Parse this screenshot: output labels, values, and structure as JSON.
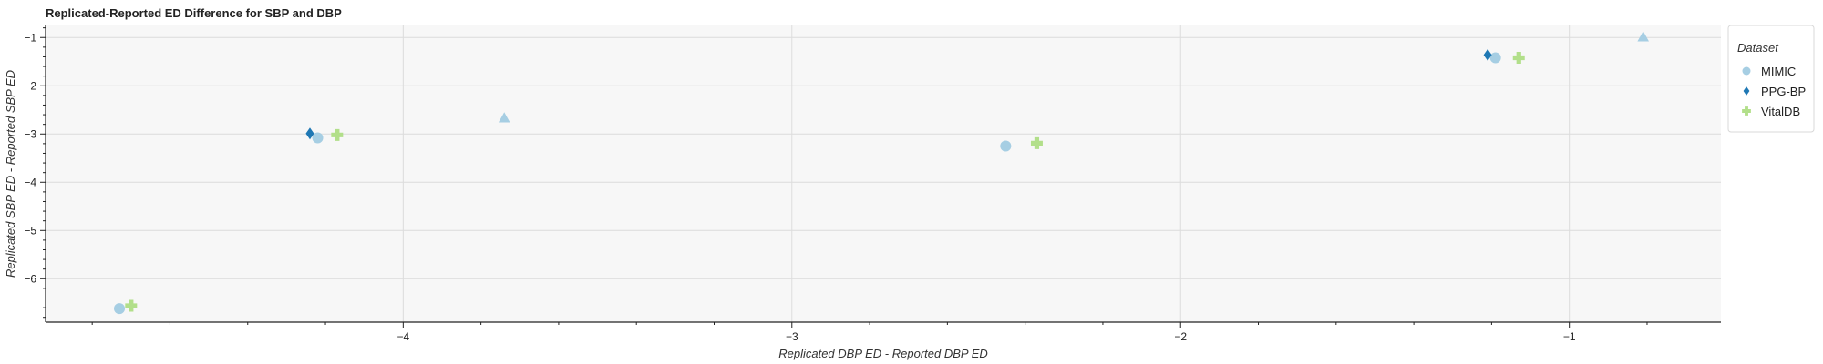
{
  "chart_data": {
    "type": "scatter",
    "title": "Replicated-Reported ED Difference for SBP and DBP",
    "xlabel": "Replicated DBP ED - Reported DBP ED",
    "ylabel": "Replicated SBP ED - Reported SBP ED",
    "xlim": [
      -4.92,
      -0.61
    ],
    "ylim": [
      -6.9,
      -0.75
    ],
    "xticks": [
      -4,
      -3,
      -2,
      -1
    ],
    "xtick_labels": [
      "−4",
      "−3",
      "−2",
      "−1"
    ],
    "yticks": [
      -1,
      -2,
      -3,
      -4,
      -5,
      -6
    ],
    "ytick_labels": [
      "−1",
      "−2",
      "−3",
      "−4",
      "−5",
      "−6"
    ],
    "grid": true,
    "legend": {
      "title": "Dataset",
      "placement": "right-outside-top",
      "entries": [
        {
          "name": "MIMIC",
          "marker": "circle",
          "color": "#a6cee3"
        },
        {
          "name": "PPG-BP",
          "marker": "diamond",
          "color": "#1f78b4"
        },
        {
          "name": "VitalDB",
          "marker": "plus",
          "color": "#b2df8a"
        }
      ]
    },
    "series": [
      {
        "name": "MIMIC",
        "marker": "circle",
        "color": "#a6cee3",
        "points": [
          {
            "x": -4.73,
            "y": -6.62,
            "marker": "circle"
          },
          {
            "x": -4.22,
            "y": -3.08,
            "marker": "circle"
          },
          {
            "x": -3.74,
            "y": -2.68,
            "marker": "triangle"
          },
          {
            "x": -2.45,
            "y": -3.25,
            "marker": "circle"
          },
          {
            "x": -1.19,
            "y": -1.42,
            "marker": "circle"
          },
          {
            "x": -0.81,
            "y": -1.0,
            "marker": "triangle"
          }
        ]
      },
      {
        "name": "PPG-BP",
        "marker": "diamond",
        "color": "#1f78b4",
        "points": [
          {
            "x": -4.24,
            "y": -2.99,
            "marker": "diamond"
          },
          {
            "x": -1.21,
            "y": -1.36,
            "marker": "diamond"
          }
        ]
      },
      {
        "name": "VitalDB",
        "marker": "plus",
        "color": "#b2df8a",
        "points": [
          {
            "x": -4.7,
            "y": -6.56,
            "marker": "plus"
          },
          {
            "x": -4.17,
            "y": -3.02,
            "marker": "plus"
          },
          {
            "x": -2.37,
            "y": -3.19,
            "marker": "plus"
          },
          {
            "x": -1.13,
            "y": -1.42,
            "marker": "plus"
          }
        ]
      }
    ]
  }
}
